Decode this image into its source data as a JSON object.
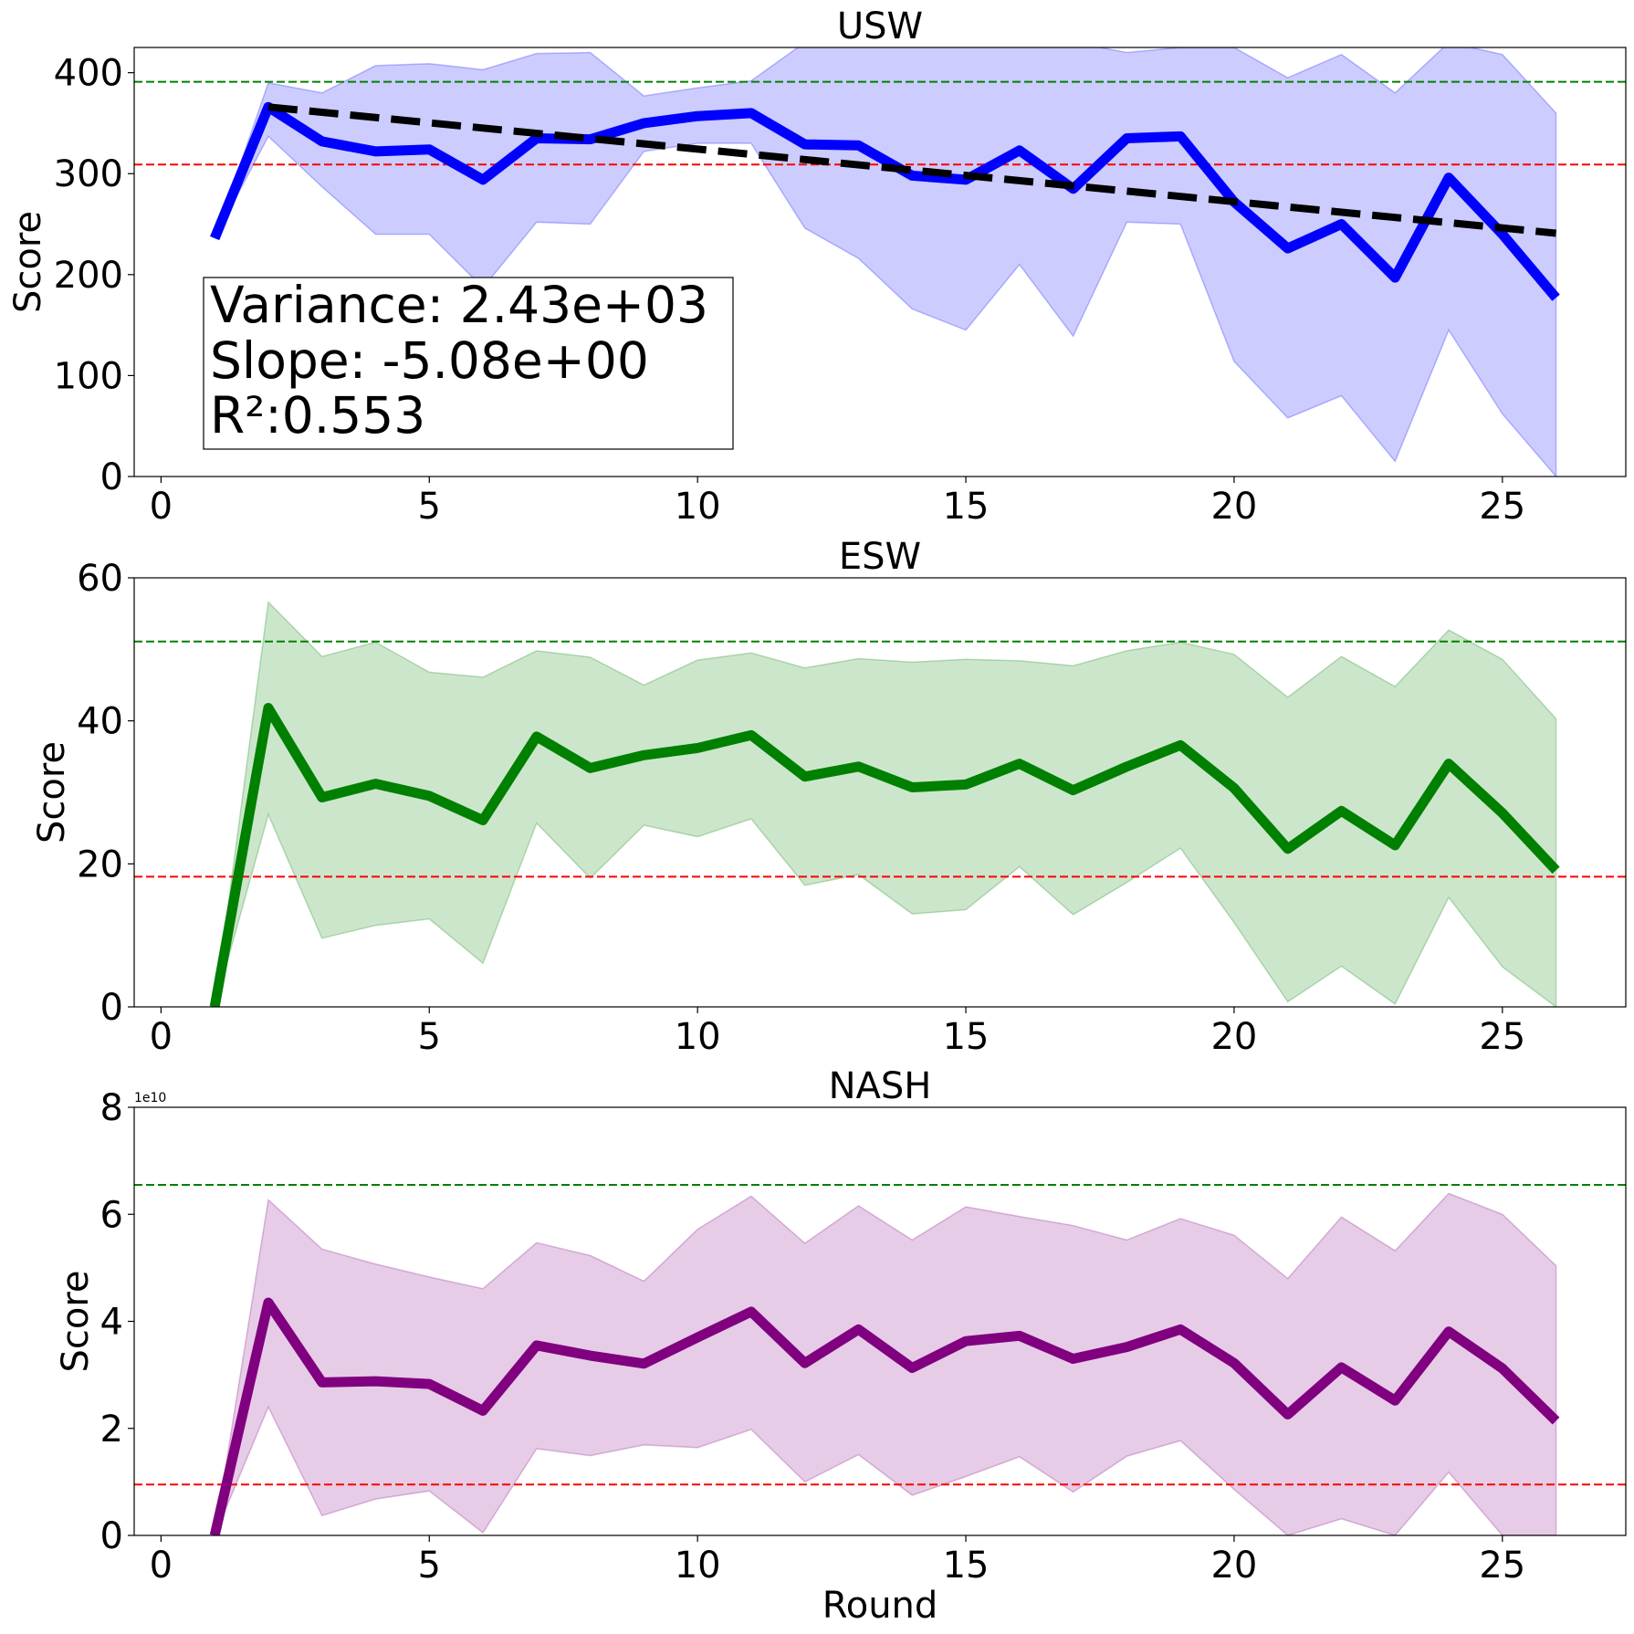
{
  "chart_data": [
    {
      "type": "line",
      "title": "USW",
      "ylabel": "Score",
      "xlabel": "",
      "xlim": [
        -0.5,
        27.3
      ],
      "ylim": [
        0,
        425
      ],
      "xticks": [
        0,
        5,
        10,
        15,
        20,
        25
      ],
      "yticks": [
        0,
        100,
        200,
        300,
        400
      ],
      "color": "#0000ff",
      "band_color": "#0000ff",
      "x": [
        1,
        2,
        3,
        4,
        5,
        6,
        7,
        8,
        9,
        10,
        11,
        12,
        13,
        14,
        15,
        16,
        17,
        18,
        19,
        20,
        21,
        22,
        23,
        24,
        25,
        26
      ],
      "values": [
        236,
        366,
        332,
        322,
        324,
        294,
        335,
        334,
        350,
        357,
        360,
        329,
        328,
        298,
        294,
        323,
        285,
        335,
        337,
        272,
        226,
        250,
        197,
        296,
        240,
        177
      ],
      "band_upper": [
        236,
        390,
        380,
        407,
        409,
        403,
        419,
        420,
        377,
        385,
        392,
        430,
        430,
        430,
        430,
        430,
        430,
        420,
        425,
        425,
        395,
        418,
        380,
        430,
        418,
        360
      ],
      "band_lower": [
        236,
        337,
        287,
        240,
        240,
        187,
        252,
        250,
        322,
        330,
        330,
        246,
        216,
        166,
        145,
        210,
        139,
        252,
        250,
        114,
        58,
        80,
        15,
        145,
        62,
        0
      ],
      "ref_upper": 391,
      "ref_lower": 309,
      "trend": {
        "x_start": 2,
        "y_start": 366,
        "x_end": 26,
        "y_end": 241
      },
      "stats": {
        "line1": "Variance: 2.43e+03",
        "line2": " Slope: -5.08e+00",
        "line3": " R²:0.553"
      }
    },
    {
      "type": "line",
      "title": "ESW",
      "ylabel": "Score",
      "xlabel": "",
      "xlim": [
        -0.5,
        27.3
      ],
      "ylim": [
        0,
        60
      ],
      "xticks": [
        0,
        5,
        10,
        15,
        20,
        25
      ],
      "yticks": [
        0,
        20,
        40,
        60
      ],
      "color": "#008000",
      "band_color": "#008000",
      "x": [
        1,
        2,
        3,
        4,
        5,
        6,
        7,
        8,
        9,
        10,
        11,
        12,
        13,
        14,
        15,
        16,
        17,
        18,
        19,
        20,
        21,
        22,
        23,
        24,
        25,
        26
      ],
      "values": [
        0,
        41.8,
        29.3,
        31.2,
        29.5,
        26.1,
        37.8,
        33.4,
        35.2,
        36.2,
        38.0,
        32.2,
        33.6,
        30.7,
        31.1,
        34.0,
        30.3,
        33.6,
        36.6,
        30.6,
        22.1,
        27.4,
        22.6,
        34.0,
        27.1,
        19.1
      ],
      "band_upper": [
        0,
        56.6,
        49.0,
        51.0,
        46.8,
        46.1,
        49.8,
        48.9,
        45.0,
        48.5,
        49.5,
        47.4,
        48.7,
        48.2,
        48.6,
        48.4,
        47.7,
        49.8,
        51.0,
        49.3,
        43.3,
        49.0,
        44.8,
        52.7,
        48.6,
        40.3
      ],
      "band_lower": [
        0,
        26.9,
        9.6,
        11.4,
        12.3,
        6.1,
        25.7,
        18.0,
        25.4,
        23.8,
        26.3,
        17.0,
        18.5,
        13.0,
        13.6,
        19.6,
        12.9,
        17.4,
        22.2,
        11.8,
        0.7,
        5.7,
        0.4,
        15.3,
        5.6,
        0
      ],
      "ref_upper": 51.1,
      "ref_lower": 18.2
    },
    {
      "type": "line",
      "title": "NASH",
      "ylabel": "Score",
      "xlabel": "Round",
      "xlim": [
        -0.5,
        27.3
      ],
      "ylim": [
        0,
        8
      ],
      "xticks": [
        0,
        5,
        10,
        15,
        20,
        25
      ],
      "yticks": [
        0,
        2,
        4,
        6,
        8
      ],
      "axis_offset": "1e10",
      "color": "#800080",
      "band_color": "#800080",
      "x": [
        1,
        2,
        3,
        4,
        5,
        6,
        7,
        8,
        9,
        10,
        11,
        12,
        13,
        14,
        15,
        16,
        17,
        18,
        19,
        20,
        21,
        22,
        23,
        24,
        25,
        26
      ],
      "values": [
        0,
        4.35,
        2.86,
        2.88,
        2.83,
        2.33,
        3.55,
        3.36,
        3.21,
        3.7,
        4.18,
        3.22,
        3.85,
        3.13,
        3.63,
        3.73,
        3.3,
        3.52,
        3.85,
        3.22,
        2.26,
        3.14,
        2.52,
        3.81,
        3.12,
        2.14
      ],
      "band_upper": [
        0,
        6.27,
        5.35,
        5.07,
        4.83,
        4.61,
        5.47,
        5.23,
        4.75,
        5.72,
        6.34,
        5.46,
        6.16,
        5.52,
        6.14,
        5.96,
        5.79,
        5.52,
        5.92,
        5.61,
        4.8,
        5.95,
        5.32,
        6.39,
        6.0,
        5.04
      ],
      "band_lower": [
        0,
        2.4,
        0.37,
        0.68,
        0.83,
        0.05,
        1.62,
        1.49,
        1.69,
        1.64,
        1.98,
        1.0,
        1.51,
        0.75,
        1.1,
        1.47,
        0.81,
        1.48,
        1.77,
        0.86,
        0,
        0.31,
        0,
        1.18,
        0,
        0
      ],
      "ref_upper": 6.55,
      "ref_lower": 0.95
    }
  ]
}
